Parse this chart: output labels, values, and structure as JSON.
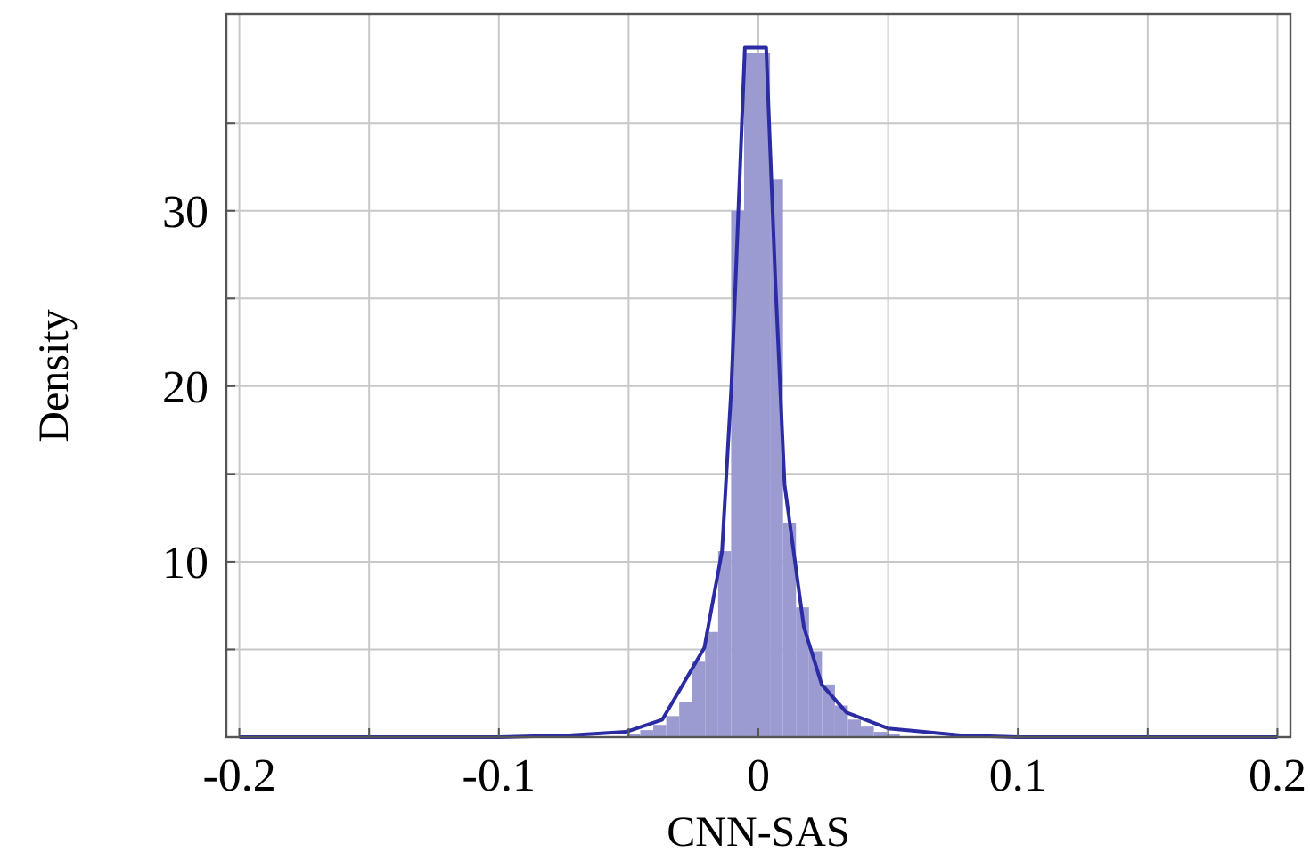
{
  "chart_data": {
    "type": "histogram",
    "xlabel": "CNN-SAS",
    "ylabel": "Density",
    "bins": [
      -0.0505,
      -0.0455,
      -0.0405,
      -0.0355,
      -0.0305,
      -0.0255,
      -0.0205,
      -0.0155,
      -0.0105,
      -0.0055,
      -0.0005,
      0.0045,
      0.0095,
      0.0145,
      0.0195,
      0.0245,
      0.0295,
      0.0345,
      0.0395,
      0.0445,
      0.0495,
      0.0545
    ],
    "values": [
      0.2,
      0.4,
      0.7,
      1.2,
      2.0,
      4.3,
      6.0,
      10.6,
      30,
      39,
      39,
      31.8,
      12.2,
      7.4,
      4.9,
      3.0,
      1.8,
      1.0,
      0.6,
      0.3,
      0.2
    ],
    "color": "#9b9bd2",
    "series": [
      {
        "type": "line",
        "color": "#2b2ba3",
        "x": [
          -0.2,
          -0.1,
          -0.073,
          -0.051,
          -0.037,
          -0.0208,
          -0.014,
          -0.0104,
          -0.0052,
          0.003,
          0.0066,
          0.0101,
          0.0175,
          0.0244,
          0.034,
          0.05,
          0.078,
          0.1,
          0.2
        ],
        "values": [
          0,
          0,
          0.1,
          0.3,
          1.0,
          5.1,
          10.6,
          20,
          39.3,
          39.3,
          25.8,
          14.4,
          6.3,
          3.0,
          1.4,
          0.5,
          0.1,
          0,
          0
        ]
      }
    ],
    "xlim": [
      -0.205,
      0.205
    ],
    "ylim": [
      0,
      41.2
    ],
    "xticks": [
      -0.2,
      {
        "value": -0.15,
        "label": null
      },
      -0.1,
      {
        "value": -0.05,
        "label": null
      },
      0,
      {
        "value": 0.05,
        "label": null
      },
      0.1,
      {
        "value": 0.15,
        "label": null
      },
      0.2
    ],
    "yticks": [
      {
        "value": 5,
        "label": null
      },
      10,
      {
        "value": 15,
        "label": null
      },
      20,
      {
        "value": 25,
        "label": null
      },
      30,
      {
        "value": 35,
        "label": null
      }
    ],
    "grid": true,
    "marker": "none",
    "line_style": "solid"
  }
}
